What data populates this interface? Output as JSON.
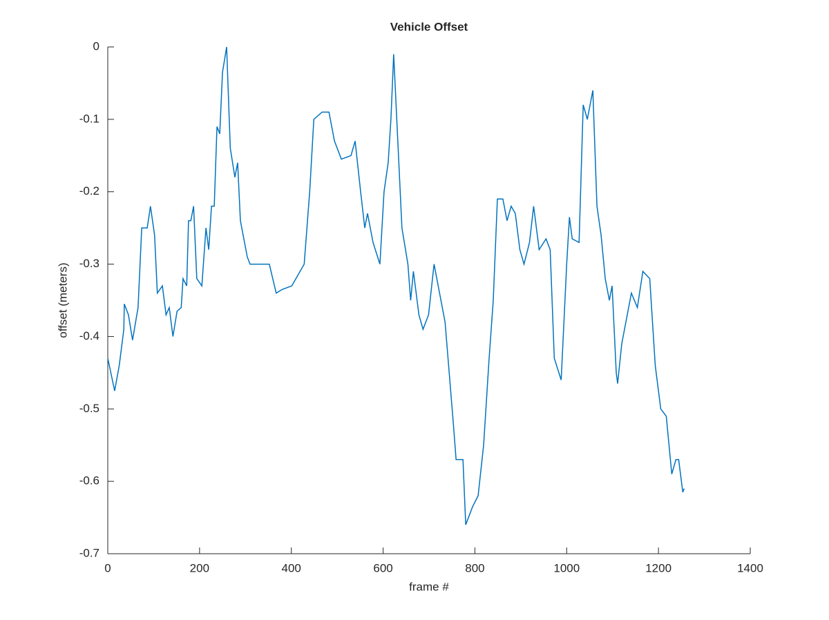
{
  "chart_data": {
    "type": "line",
    "title": "Vehicle Offset",
    "xlabel": "frame #",
    "ylabel": "offset (meters)",
    "x": [
      0,
      10,
      15,
      25,
      35,
      36,
      45,
      54,
      66,
      74,
      86,
      93,
      102,
      108,
      119,
      127,
      134,
      142,
      151,
      160,
      164,
      172,
      176,
      181,
      187,
      194,
      205,
      214,
      220,
      226,
      232,
      238,
      244,
      250,
      259,
      267,
      277,
      283,
      289,
      304,
      310,
      352,
      367,
      380,
      401,
      428,
      440,
      449,
      467,
      482,
      494,
      509,
      530,
      539,
      551,
      560,
      566,
      578,
      593,
      602,
      611,
      617,
      623,
      632,
      641,
      654,
      660,
      666,
      678,
      687,
      699,
      711,
      723,
      735,
      744,
      753,
      759,
      774,
      780,
      795,
      807,
      819,
      831,
      840,
      849,
      861,
      870,
      879,
      888,
      898,
      907,
      919,
      928,
      940,
      955,
      964,
      973,
      988,
      1000,
      1006,
      1012,
      1027,
      1036,
      1045,
      1057,
      1066,
      1075,
      1084,
      1093,
      1099,
      1108,
      1111,
      1120,
      1129,
      1141,
      1154,
      1166,
      1181,
      1193,
      1205,
      1217,
      1229,
      1238,
      1244,
      1253,
      1256
    ],
    "series": [
      {
        "name": "offset",
        "color": "#0072bd",
        "values": [
          -0.43,
          -0.46,
          -0.475,
          -0.44,
          -0.39,
          -0.355,
          -0.37,
          -0.405,
          -0.36,
          -0.25,
          -0.25,
          -0.22,
          -0.26,
          -0.34,
          -0.33,
          -0.37,
          -0.36,
          -0.4,
          -0.365,
          -0.36,
          -0.32,
          -0.33,
          -0.24,
          -0.24,
          -0.22,
          -0.32,
          -0.33,
          -0.25,
          -0.28,
          -0.22,
          -0.22,
          -0.11,
          -0.12,
          -0.035,
          0,
          -0.14,
          -0.18,
          -0.16,
          -0.24,
          -0.29,
          -0.3,
          -0.3,
          -0.34,
          -0.335,
          -0.33,
          -0.3,
          -0.2,
          -0.1,
          -0.09,
          -0.09,
          -0.13,
          -0.155,
          -0.15,
          -0.13,
          -0.2,
          -0.25,
          -0.23,
          -0.27,
          -0.3,
          -0.2,
          -0.16,
          -0.1,
          -0.01,
          -0.13,
          -0.25,
          -0.3,
          -0.35,
          -0.31,
          -0.37,
          -0.39,
          -0.37,
          -0.3,
          -0.34,
          -0.38,
          -0.45,
          -0.52,
          -0.57,
          -0.57,
          -0.66,
          -0.635,
          -0.62,
          -0.55,
          -0.43,
          -0.35,
          -0.21,
          -0.21,
          -0.24,
          -0.22,
          -0.23,
          -0.28,
          -0.3,
          -0.27,
          -0.22,
          -0.28,
          -0.265,
          -0.28,
          -0.43,
          -0.46,
          -0.3,
          -0.235,
          -0.265,
          -0.27,
          -0.08,
          -0.1,
          -0.06,
          -0.22,
          -0.26,
          -0.32,
          -0.35,
          -0.33,
          -0.45,
          -0.465,
          -0.41,
          -0.38,
          -0.34,
          -0.36,
          -0.31,
          -0.32,
          -0.44,
          -0.5,
          -0.51,
          -0.59,
          -0.57,
          -0.57,
          -0.615,
          -0.61
        ]
      }
    ],
    "xlim": [
      0,
      1400
    ],
    "xticks": [
      0,
      200,
      400,
      600,
      800,
      1000,
      1200,
      1400
    ],
    "ylim": [
      -0.7,
      0
    ],
    "yticks": [
      -0.7,
      -0.6,
      -0.5,
      -0.4,
      -0.3,
      -0.2,
      -0.1,
      0
    ]
  }
}
